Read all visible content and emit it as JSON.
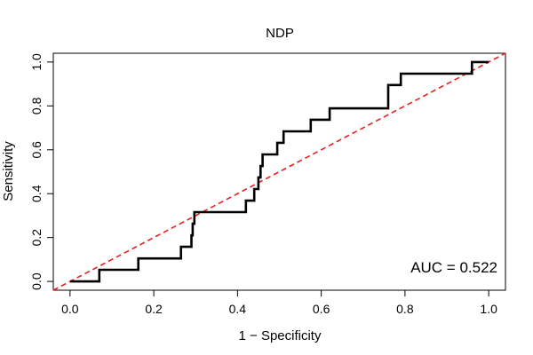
{
  "chart_data": {
    "type": "line",
    "title": "NDP",
    "xlabel": "1 − Specificity",
    "ylabel": "Sensitivity",
    "xlim": [
      -0.04,
      1.04
    ],
    "ylim": [
      -0.04,
      1.04
    ],
    "x_ticks": [
      0.0,
      0.2,
      0.4,
      0.6,
      0.8,
      1.0
    ],
    "x_tick_labels": [
      "0.0",
      "0.2",
      "0.4",
      "0.6",
      "0.8",
      "1.0"
    ],
    "y_ticks": [
      0.0,
      0.2,
      0.4,
      0.6,
      0.8,
      1.0
    ],
    "y_tick_labels": [
      "0.0",
      "0.2",
      "0.4",
      "0.6",
      "0.8",
      "1.0"
    ],
    "grid": false,
    "series": [
      {
        "name": "ROC curve",
        "color": "#000000",
        "style": "solid",
        "points": [
          [
            0.0,
            0.0
          ],
          [
            0.07,
            0.0
          ],
          [
            0.07,
            0.053
          ],
          [
            0.163,
            0.053
          ],
          [
            0.163,
            0.105
          ],
          [
            0.265,
            0.105
          ],
          [
            0.265,
            0.158
          ],
          [
            0.29,
            0.158
          ],
          [
            0.29,
            0.21
          ],
          [
            0.293,
            0.21
          ],
          [
            0.293,
            0.263
          ],
          [
            0.297,
            0.263
          ],
          [
            0.297,
            0.316
          ],
          [
            0.42,
            0.316
          ],
          [
            0.42,
            0.368
          ],
          [
            0.44,
            0.368
          ],
          [
            0.44,
            0.421
          ],
          [
            0.45,
            0.421
          ],
          [
            0.45,
            0.474
          ],
          [
            0.455,
            0.474
          ],
          [
            0.455,
            0.526
          ],
          [
            0.46,
            0.526
          ],
          [
            0.46,
            0.579
          ],
          [
            0.495,
            0.579
          ],
          [
            0.495,
            0.632
          ],
          [
            0.51,
            0.632
          ],
          [
            0.51,
            0.684
          ],
          [
            0.575,
            0.684
          ],
          [
            0.575,
            0.737
          ],
          [
            0.62,
            0.737
          ],
          [
            0.62,
            0.789
          ],
          [
            0.76,
            0.789
          ],
          [
            0.76,
            0.895
          ],
          [
            0.79,
            0.895
          ],
          [
            0.79,
            0.947
          ],
          [
            0.96,
            0.947
          ],
          [
            0.96,
            1.0
          ],
          [
            1.0,
            1.0
          ]
        ]
      },
      {
        "name": "Reference",
        "color": "#e8201f",
        "style": "dashed",
        "points": [
          [
            -0.04,
            -0.04
          ],
          [
            1.04,
            1.04
          ]
        ]
      }
    ],
    "annotations": [
      {
        "text": "AUC = 0.522",
        "position": "bottom-right"
      }
    ]
  }
}
